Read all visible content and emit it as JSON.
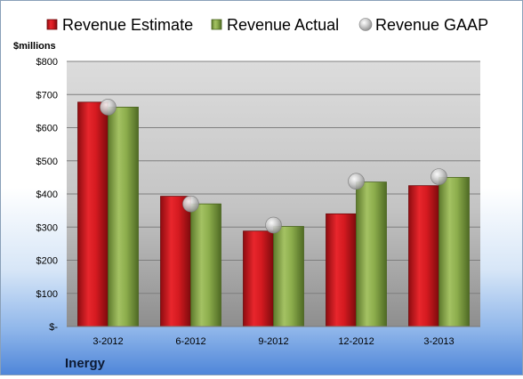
{
  "chart_data": {
    "type": "bar",
    "title": "",
    "company": "Inergy",
    "ylabel": "$millions",
    "categories": [
      "3-2012",
      "6-2012",
      "9-2012",
      "12-2012",
      "3-2013"
    ],
    "series": [
      {
        "name": "Revenue Estimate",
        "kind": "bar",
        "color": "#d7141c",
        "values": [
          677,
          393,
          288,
          340,
          425
        ]
      },
      {
        "name": "Revenue Actual",
        "kind": "bar",
        "color": "#8cad4c",
        "values": [
          662,
          370,
          302,
          436,
          450
        ]
      },
      {
        "name": "Revenue GAAP",
        "kind": "marker",
        "color": "#c0c0c0",
        "values": [
          662,
          370,
          306,
          438,
          452
        ]
      }
    ],
    "ylim": [
      0,
      800
    ],
    "yticks": [
      0,
      100,
      200,
      300,
      400,
      500,
      600,
      700,
      800
    ],
    "ytick_labels": [
      "$-",
      "$100",
      "$200",
      "$300",
      "$400",
      "$500",
      "$600",
      "$700",
      "$800"
    ],
    "grid": true,
    "legend_position": "top"
  }
}
